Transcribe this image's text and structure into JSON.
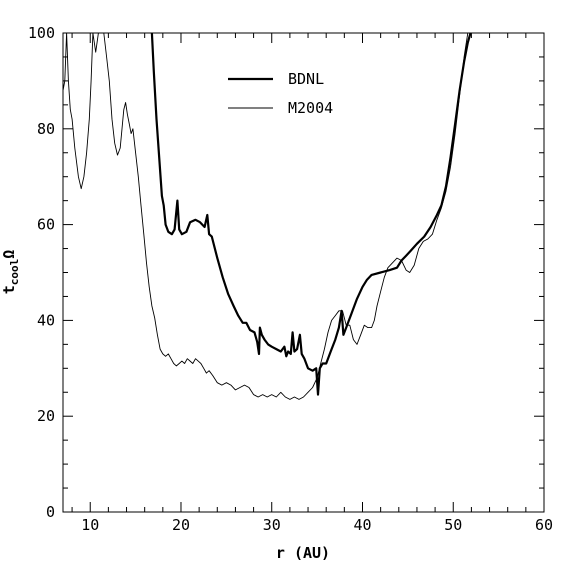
{
  "chart_data": {
    "type": "line",
    "title": "",
    "xlabel": "r (AU)",
    "ylabel_main": "t",
    "ylabel_sub": "cool",
    "ylabel_tail": "Ω",
    "xlim": [
      7,
      60
    ],
    "ylim": [
      0,
      100
    ],
    "x_ticks": [
      10,
      20,
      30,
      40,
      50,
      60
    ],
    "y_ticks": [
      0,
      20,
      40,
      60,
      80,
      100
    ],
    "x_tick_labels": [
      "10",
      "20",
      "30",
      "40",
      "50",
      "60"
    ],
    "y_tick_labels": [
      "0",
      "20",
      "40",
      "60",
      "80",
      "100"
    ],
    "legend_position": "top-center",
    "grid": false,
    "series": [
      {
        "name": "BDNL",
        "line": "thick",
        "points": [
          [
            16.8,
            100
          ],
          [
            17.0,
            92
          ],
          [
            17.3,
            82
          ],
          [
            17.6,
            74
          ],
          [
            17.9,
            66
          ],
          [
            18.1,
            64
          ],
          [
            18.3,
            60
          ],
          [
            18.6,
            58.5
          ],
          [
            19.0,
            58
          ],
          [
            19.3,
            59
          ],
          [
            19.6,
            65
          ],
          [
            19.8,
            59
          ],
          [
            20.1,
            58
          ],
          [
            20.6,
            58.5
          ],
          [
            21.0,
            60.5
          ],
          [
            21.6,
            61
          ],
          [
            22.1,
            60.5
          ],
          [
            22.6,
            59.5
          ],
          [
            22.9,
            62
          ],
          [
            23.1,
            58
          ],
          [
            23.4,
            57.5
          ],
          [
            24.0,
            53
          ],
          [
            24.6,
            49
          ],
          [
            25.2,
            45.5
          ],
          [
            25.8,
            43
          ],
          [
            26.3,
            41
          ],
          [
            26.8,
            39.5
          ],
          [
            27.2,
            39.5
          ],
          [
            27.6,
            38
          ],
          [
            28.1,
            37.5
          ],
          [
            28.4,
            35.5
          ],
          [
            28.6,
            33
          ],
          [
            28.7,
            38.5
          ],
          [
            28.9,
            37
          ],
          [
            29.2,
            36
          ],
          [
            29.6,
            35
          ],
          [
            30.0,
            34.5
          ],
          [
            30.5,
            34
          ],
          [
            31.0,
            33.5
          ],
          [
            31.4,
            34.5
          ],
          [
            31.6,
            32.5
          ],
          [
            31.8,
            33.5
          ],
          [
            32.1,
            33
          ],
          [
            32.3,
            37.5
          ],
          [
            32.5,
            33.5
          ],
          [
            32.8,
            34
          ],
          [
            33.1,
            37
          ],
          [
            33.3,
            33
          ],
          [
            33.6,
            32
          ],
          [
            34.0,
            30
          ],
          [
            34.5,
            29.5
          ],
          [
            34.9,
            30
          ],
          [
            35.1,
            24.5
          ],
          [
            35.3,
            30
          ],
          [
            35.6,
            31
          ],
          [
            36.0,
            31
          ],
          [
            36.5,
            33.5
          ],
          [
            37.0,
            36
          ],
          [
            37.4,
            38.5
          ],
          [
            37.7,
            42
          ],
          [
            37.9,
            37
          ],
          [
            38.2,
            38.5
          ],
          [
            38.8,
            41.5
          ],
          [
            39.4,
            44.5
          ],
          [
            40.0,
            47
          ],
          [
            40.5,
            48.5
          ],
          [
            41.0,
            49.5
          ],
          [
            42.0,
            50
          ],
          [
            43.0,
            50.5
          ],
          [
            43.8,
            51
          ],
          [
            44.3,
            52.5
          ],
          [
            44.8,
            53.5
          ],
          [
            45.3,
            54.5
          ],
          [
            46.0,
            56
          ],
          [
            46.8,
            57.5
          ],
          [
            47.5,
            59.5
          ],
          [
            48.2,
            62
          ],
          [
            48.7,
            64
          ],
          [
            49.2,
            68
          ],
          [
            49.7,
            74
          ],
          [
            50.2,
            81
          ],
          [
            50.7,
            88
          ],
          [
            51.2,
            94
          ],
          [
            51.6,
            98
          ],
          [
            51.9,
            100
          ]
        ]
      },
      {
        "name": "M2004",
        "line": "thin",
        "points": [
          [
            7.0,
            88
          ],
          [
            7.2,
            90
          ],
          [
            7.4,
            100
          ],
          [
            7.6,
            90
          ],
          [
            7.8,
            84
          ],
          [
            8.0,
            82
          ],
          [
            8.3,
            76
          ],
          [
            8.7,
            70
          ],
          [
            9.0,
            67.5
          ],
          [
            9.3,
            70
          ],
          [
            9.6,
            75
          ],
          [
            9.9,
            82
          ],
          [
            10.1,
            90
          ],
          [
            10.3,
            100
          ],
          [
            10.6,
            96
          ],
          [
            10.9,
            100
          ],
          [
            11.5,
            100
          ],
          [
            11.8,
            95
          ],
          [
            12.1,
            90
          ],
          [
            12.4,
            82
          ],
          [
            12.7,
            77
          ],
          [
            13.0,
            74.5
          ],
          [
            13.3,
            76
          ],
          [
            13.5,
            80
          ],
          [
            13.7,
            84
          ],
          [
            13.9,
            85.5
          ],
          [
            14.1,
            83
          ],
          [
            14.3,
            81
          ],
          [
            14.5,
            79
          ],
          [
            14.7,
            80
          ],
          [
            15.0,
            75
          ],
          [
            15.3,
            70
          ],
          [
            15.6,
            64
          ],
          [
            15.9,
            58
          ],
          [
            16.2,
            52
          ],
          [
            16.5,
            47
          ],
          [
            16.8,
            43
          ],
          [
            17.1,
            40.5
          ],
          [
            17.4,
            37
          ],
          [
            17.7,
            34
          ],
          [
            18.0,
            33
          ],
          [
            18.3,
            32.5
          ],
          [
            18.6,
            33
          ],
          [
            18.9,
            32
          ],
          [
            19.2,
            31
          ],
          [
            19.5,
            30.5
          ],
          [
            19.8,
            31
          ],
          [
            20.1,
            31.5
          ],
          [
            20.4,
            31
          ],
          [
            20.7,
            32
          ],
          [
            21.0,
            31.5
          ],
          [
            21.3,
            31
          ],
          [
            21.6,
            32
          ],
          [
            21.9,
            31.5
          ],
          [
            22.2,
            31
          ],
          [
            22.5,
            30
          ],
          [
            22.8,
            29
          ],
          [
            23.1,
            29.5
          ],
          [
            23.5,
            28.5
          ],
          [
            24.0,
            27
          ],
          [
            24.5,
            26.5
          ],
          [
            25.0,
            27
          ],
          [
            25.5,
            26.5
          ],
          [
            26.0,
            25.5
          ],
          [
            26.5,
            26
          ],
          [
            27.0,
            26.5
          ],
          [
            27.5,
            26
          ],
          [
            28.0,
            24.5
          ],
          [
            28.5,
            24
          ],
          [
            29.0,
            24.5
          ],
          [
            29.5,
            24
          ],
          [
            30.0,
            24.5
          ],
          [
            30.5,
            24
          ],
          [
            31.0,
            25
          ],
          [
            31.5,
            24
          ],
          [
            32.0,
            23.5
          ],
          [
            32.5,
            24
          ],
          [
            33.0,
            23.5
          ],
          [
            33.5,
            24
          ],
          [
            34.0,
            25
          ],
          [
            34.5,
            26
          ],
          [
            35.0,
            28
          ],
          [
            35.4,
            31
          ],
          [
            35.8,
            34
          ],
          [
            36.2,
            37.5
          ],
          [
            36.6,
            40
          ],
          [
            37.0,
            41
          ],
          [
            37.4,
            42
          ],
          [
            37.8,
            42
          ],
          [
            38.2,
            39
          ],
          [
            38.6,
            39
          ],
          [
            39.0,
            36
          ],
          [
            39.4,
            35
          ],
          [
            39.8,
            37
          ],
          [
            40.2,
            39
          ],
          [
            40.6,
            38.5
          ],
          [
            41.0,
            38.5
          ],
          [
            41.3,
            40
          ],
          [
            41.6,
            43
          ],
          [
            42.0,
            46
          ],
          [
            42.4,
            49
          ],
          [
            42.8,
            51
          ],
          [
            43.3,
            52
          ],
          [
            43.8,
            53
          ],
          [
            44.3,
            52.5
          ],
          [
            44.8,
            50.5
          ],
          [
            45.2,
            50
          ],
          [
            45.7,
            51.5
          ],
          [
            46.2,
            55
          ],
          [
            46.7,
            56.5
          ],
          [
            47.2,
            57
          ],
          [
            47.7,
            58
          ],
          [
            48.2,
            61
          ],
          [
            48.7,
            63.5
          ],
          [
            49.2,
            67
          ],
          [
            49.7,
            72
          ],
          [
            50.2,
            79
          ],
          [
            50.7,
            87
          ],
          [
            51.2,
            95
          ],
          [
            51.6,
            100
          ]
        ]
      }
    ]
  }
}
